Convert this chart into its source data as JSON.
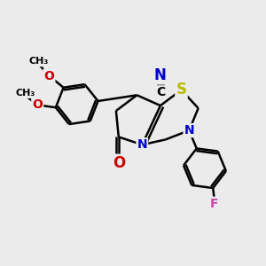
{
  "bg_color": "#ebebeb",
  "bond_color": "#000000",
  "bond_width": 1.8,
  "atom_colors": {
    "C": "#000000",
    "N": "#0000cc",
    "O": "#cc0000",
    "S": "#bbbb00",
    "F": "#cc44aa",
    "H": "#000000"
  },
  "font_size": 10
}
